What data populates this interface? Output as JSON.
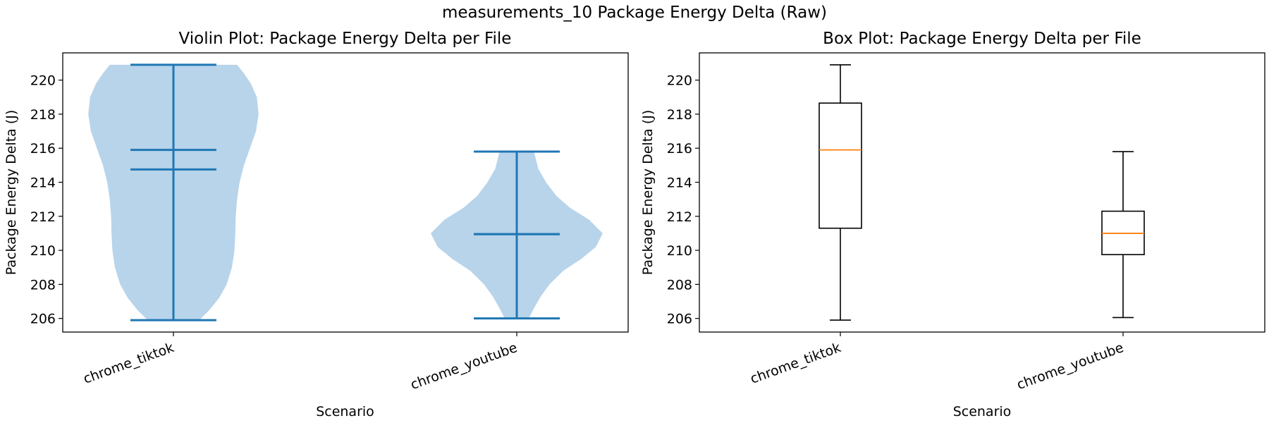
{
  "figure": {
    "suptitle": "measurements_10 Package Energy Delta (Raw)"
  },
  "colors": {
    "violin_fill": "#b8d4ea",
    "violin_line": "#1f77b4",
    "median": "#ff7f0e",
    "box": "#000000"
  },
  "chart_data": [
    {
      "type": "violin",
      "title": "Violin Plot: Package Energy Delta per File",
      "xlabel": "Scenario",
      "ylabel": "Package Energy Delta (J)",
      "ylim": [
        205.2,
        221.6
      ],
      "yticks": [
        206,
        208,
        210,
        212,
        214,
        216,
        218,
        220
      ],
      "categories": [
        "chrome_tiktok",
        "chrome_youtube"
      ],
      "series": [
        {
          "name": "chrome_tiktok",
          "min": 205.9,
          "max": 220.9,
          "mean": 214.75,
          "median": 215.9,
          "density_profile": [
            [
              205.9,
              0.3
            ],
            [
              206.5,
              0.42
            ],
            [
              207.2,
              0.53
            ],
            [
              208.0,
              0.62
            ],
            [
              209.0,
              0.68
            ],
            [
              210.0,
              0.71
            ],
            [
              211.0,
              0.72
            ],
            [
              212.0,
              0.725
            ],
            [
              213.0,
              0.74
            ],
            [
              214.0,
              0.77
            ],
            [
              215.0,
              0.82
            ],
            [
              216.0,
              0.89
            ],
            [
              217.0,
              0.96
            ],
            [
              218.0,
              0.99
            ],
            [
              219.0,
              0.97
            ],
            [
              219.8,
              0.9
            ],
            [
              220.4,
              0.82
            ],
            [
              220.9,
              0.74
            ]
          ]
        },
        {
          "name": "chrome_youtube",
          "min": 206.0,
          "max": 215.8,
          "mean": 210.95,
          "median": 210.95,
          "density_profile": [
            [
              206.0,
              0.14
            ],
            [
              206.6,
              0.2
            ],
            [
              207.3,
              0.28
            ],
            [
              208.0,
              0.38
            ],
            [
              208.8,
              0.54
            ],
            [
              209.5,
              0.75
            ],
            [
              210.2,
              0.92
            ],
            [
              211.0,
              1.0
            ],
            [
              211.8,
              0.84
            ],
            [
              212.5,
              0.62
            ],
            [
              213.2,
              0.46
            ],
            [
              214.0,
              0.34
            ],
            [
              214.8,
              0.25
            ],
            [
              215.8,
              0.2
            ]
          ]
        }
      ]
    },
    {
      "type": "box",
      "title": "Box Plot: Package Energy Delta per File",
      "xlabel": "Scenario",
      "ylabel": "Package Energy Delta (J)",
      "ylim": [
        205.2,
        221.6
      ],
      "yticks": [
        206,
        208,
        210,
        212,
        214,
        216,
        218,
        220
      ],
      "categories": [
        "chrome_tiktok",
        "chrome_youtube"
      ],
      "series": [
        {
          "name": "chrome_tiktok",
          "whisker_low": 205.9,
          "q1": 211.3,
          "median": 215.9,
          "q3": 218.65,
          "whisker_high": 220.9
        },
        {
          "name": "chrome_youtube",
          "whisker_low": 206.05,
          "q1": 209.75,
          "median": 211.0,
          "q3": 212.3,
          "whisker_high": 215.8
        }
      ]
    }
  ]
}
